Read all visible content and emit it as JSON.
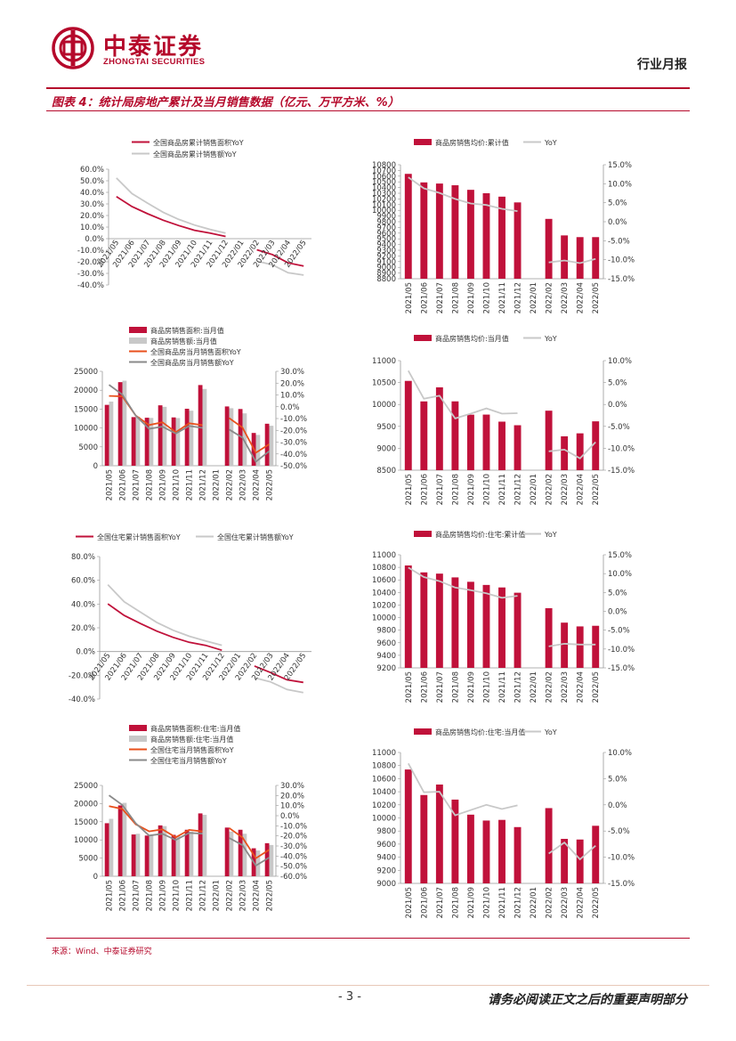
{
  "header": {
    "company_cn": "中泰证券",
    "company_en": "ZHONGTAI SECURITIES",
    "report_type": "行业月报"
  },
  "figure": {
    "title": "图表 4：统计局房地产累计及当月销售数据（亿元、万平方米、%）"
  },
  "footer": {
    "source": "来源：Wind、中泰证券研究",
    "page": "- 3 -",
    "disclaimer": "请务必阅读正文之后的重要声明部分"
  },
  "colors": {
    "red": "#c0113a",
    "grey": "#c8c8c8",
    "orange": "#e8501c",
    "darkgrey": "#8a8a8a"
  },
  "chart_data": [
    {
      "id": "c1",
      "type": "line",
      "categories": [
        "2021/05",
        "2021/06",
        "2021/07",
        "2021/08",
        "2021/09",
        "2021/10",
        "2021/11",
        "2021/12",
        "2022/01",
        "2022/02",
        "2022/03",
        "2022/04",
        "2022/05"
      ],
      "left_axis": {
        "ticks": [
          "60.0%",
          "50.0%",
          "40.0%",
          "30.0%",
          "20.0%",
          "10.0%",
          "0.0%",
          "-10.0%",
          "-20.0%",
          "-30.0%",
          "-40.0%"
        ],
        "min": -40,
        "max": 60
      },
      "series": [
        {
          "name": "全国商品房累计销售面积YoY",
          "kind": "line",
          "axis": "left",
          "color": "#c0113a",
          "values": [
            36.3,
            27.7,
            21.5,
            15.9,
            11.3,
            7.2,
            4.8,
            1.9,
            null,
            -9.6,
            -13.8,
            -20.9,
            -23.6
          ]
        },
        {
          "name": "全国商品房累计销售额YoY",
          "kind": "line",
          "axis": "left",
          "color": "#c8c8c8",
          "values": [
            52.4,
            38.9,
            30.7,
            22.8,
            16.6,
            11.8,
            8.0,
            4.8,
            null,
            -19.3,
            -22.7,
            -29.5,
            -31.5
          ]
        }
      ]
    },
    {
      "id": "c2",
      "type": "bar",
      "categories": [
        "2021/05",
        "2021/06",
        "2021/07",
        "2021/08",
        "2021/09",
        "2021/10",
        "2021/11",
        "2021/12",
        "2022/01",
        "2022/02",
        "2022/03",
        "2022/04",
        "2022/05"
      ],
      "left_axis": {
        "ticks": [
          "10800",
          "10700",
          "10600",
          "10500",
          "10400",
          "10300",
          "10200",
          "10100",
          "10000",
          "9900",
          "9800",
          "9700",
          "9600",
          "9500",
          "9400",
          "9300",
          "9200",
          "9100",
          "9000",
          "8900",
          "8800"
        ],
        "min": 8800,
        "max": 10800
      },
      "right_axis": {
        "ticks": [
          "15.0%",
          "10.0%",
          "5.0%",
          "0.0%",
          "-5.0%",
          "-10.0%",
          "-15.0%"
        ],
        "min": -15,
        "max": 15
      },
      "series": [
        {
          "name": "商品房销售均价:累计值",
          "kind": "bar",
          "axis": "left",
          "color": "#c0113a",
          "values": [
            10640,
            10490,
            10470,
            10440,
            10360,
            10300,
            10240,
            10139,
            null,
            9850,
            9560,
            9530,
            9530
          ]
        },
        {
          "name": "YoY",
          "kind": "line",
          "axis": "right",
          "color": "#c8c8c8",
          "values": [
            11.7,
            8.8,
            7.6,
            6.0,
            4.8,
            4.4,
            3.4,
            2.8,
            null,
            -10.7,
            -10.2,
            -10.9,
            -9.8
          ]
        }
      ]
    },
    {
      "id": "c3",
      "type": "bar",
      "categories": [
        "2021/05",
        "2021/06",
        "2021/07",
        "2021/08",
        "2021/09",
        "2021/10",
        "2021/11",
        "2021/12",
        "2022/01",
        "2022/02",
        "2022/03",
        "2022/04",
        "2022/05"
      ],
      "left_axis": {
        "ticks": [
          "25000",
          "20000",
          "15000",
          "10000",
          "5000",
          "0"
        ],
        "min": 0,
        "max": 25000
      },
      "right_axis": {
        "ticks": [
          "30.0%",
          "20.0%",
          "10.0%",
          "0.0%",
          "-10.0%",
          "-20.0%",
          "-30.0%",
          "-40.0%",
          "-50.0%"
        ],
        "min": -50,
        "max": 30
      },
      "series": [
        {
          "name": "商品房销售面积:当月值",
          "kind": "bar",
          "axis": "left",
          "color": "#c0113a",
          "values": [
            16123,
            22139,
            12879,
            12716,
            16003,
            12797,
            15094,
            21370,
            null,
            15703,
            15021,
            8682,
            11124
          ]
        },
        {
          "name": "商品房销售额:当月值",
          "kind": "bar",
          "axis": "left",
          "color": "#c8c8c8",
          "values": [
            16990,
            22515,
            12975,
            12663,
            15600,
            12634,
            14576,
            20336,
            null,
            15229,
            13873,
            8163,
            10584
          ]
        },
        {
          "name": "全国商品房当月销售面积YoY",
          "kind": "line",
          "axis": "right",
          "color": "#e8501c",
          "values": [
            9.2,
            8.8,
            -7.4,
            -15.5,
            -13.2,
            -21.6,
            -14.0,
            -15.6,
            null,
            -9.6,
            -17.7,
            -39.0,
            -31.8
          ]
        },
        {
          "name": "全国商品房当月销售额YoY",
          "kind": "line",
          "axis": "right",
          "color": "#8a8a8a",
          "values": [
            18.6,
            10.2,
            -7.5,
            -18.7,
            -16.9,
            -22.7,
            -16.3,
            -17.9,
            null,
            -19.3,
            -26.2,
            -46.6,
            -37.7
          ]
        }
      ]
    },
    {
      "id": "c4",
      "type": "bar",
      "categories": [
        "2021/05",
        "2021/06",
        "2021/07",
        "2021/08",
        "2021/09",
        "2021/10",
        "2021/11",
        "2021/12",
        "2022/01",
        "2022/02",
        "2022/03",
        "2022/04",
        "2022/05"
      ],
      "left_axis": {
        "ticks": [
          "11000",
          "10500",
          "10000",
          "9500",
          "9000",
          "8500"
        ],
        "min": 8500,
        "max": 11000
      },
      "right_axis": {
        "ticks": [
          "10.0%",
          "5.0%",
          "0.0%",
          "-5.0%",
          "-10.0%",
          "-15.0%"
        ],
        "min": -15,
        "max": 10
      },
      "series": [
        {
          "name": "商品房销售均价:当月值",
          "kind": "bar",
          "axis": "left",
          "color": "#c0113a",
          "values": [
            10538,
            10070,
            10391,
            10071,
            9767,
            9769,
            9608,
            9526,
            null,
            9858,
            9273,
            9341,
            9615
          ]
        },
        {
          "name": "YoY",
          "kind": "line",
          "axis": "right",
          "color": "#c8c8c8",
          "values": [
            7.7,
            1.3,
            2.0,
            -3.2,
            -2.1,
            -0.9,
            -2.1,
            -2.0,
            null,
            -10.7,
            -10.3,
            -12.3,
            -8.6
          ]
        }
      ]
    },
    {
      "id": "c5",
      "type": "line",
      "categories": [
        "2021/05",
        "2021/06",
        "2021/07",
        "2021/08",
        "2021/09",
        "2021/10",
        "2021/11",
        "2021/12",
        "2022/01",
        "2022/02",
        "2022/03",
        "2022/04",
        "2022/05"
      ],
      "left_axis": {
        "ticks": [
          "80.0%",
          "60.0%",
          "40.0%",
          "20.0%",
          "0.0%",
          "-20.0%",
          "-40.0%"
        ],
        "min": -40,
        "max": 80
      },
      "series": [
        {
          "name": "全国住宅累计销售面积YoY",
          "kind": "line",
          "axis": "left",
          "color": "#c0113a",
          "values": [
            40.2,
            30.4,
            23.6,
            17.2,
            12.0,
            7.8,
            5.2,
            1.1,
            null,
            -12.2,
            -17.7,
            -23.8,
            -26.0
          ]
        },
        {
          "name": "全国住宅累计销售额YoY",
          "kind": "line",
          "axis": "left",
          "color": "#c8c8c8",
          "values": [
            56.3,
            42.0,
            33.2,
            24.6,
            18.0,
            12.9,
            8.9,
            5.3,
            null,
            -22.1,
            -25.6,
            -32.0,
            -34.5
          ]
        }
      ]
    },
    {
      "id": "c6",
      "type": "bar",
      "categories": [
        "2021/05",
        "2021/06",
        "2021/07",
        "2021/08",
        "2021/09",
        "2021/10",
        "2021/11",
        "2021/12",
        "2022/01",
        "2022/02",
        "2022/03",
        "2022/04",
        "2022/05"
      ],
      "left_axis": {
        "ticks": [
          "11000",
          "10800",
          "10600",
          "10400",
          "10200",
          "10000",
          "9800",
          "9600",
          "9400",
          "9200"
        ],
        "min": 9200,
        "max": 11000
      },
      "right_axis": {
        "ticks": [
          "15.0%",
          "10.0%",
          "5.0%",
          "0.0%",
          "-5.0%",
          "-10.0%",
          "-15.0%"
        ],
        "min": -15,
        "max": 15
      },
      "series": [
        {
          "name": "商品房销售均价:住宅:累计值",
          "kind": "bar",
          "axis": "left",
          "color": "#c0113a",
          "values": [
            10830,
            10720,
            10700,
            10640,
            10570,
            10520,
            10480,
            10396,
            null,
            10150,
            9920,
            9860,
            9870
          ]
        },
        {
          "name": "YoY",
          "kind": "line",
          "axis": "right",
          "color": "#c8c8c8",
          "values": [
            11.6,
            9.1,
            8.0,
            6.3,
            5.6,
            4.8,
            3.6,
            4.1,
            null,
            -9.3,
            -8.6,
            -8.8,
            -8.8
          ]
        }
      ]
    },
    {
      "id": "c7",
      "type": "bar",
      "categories": [
        "2021/05",
        "2021/06",
        "2021/07",
        "2021/08",
        "2021/09",
        "2021/10",
        "2021/11",
        "2021/12",
        "2022/01",
        "2022/02",
        "2022/03",
        "2022/04",
        "2022/05"
      ],
      "left_axis": {
        "ticks": [
          "25000",
          "20000",
          "15000",
          "10000",
          "5000",
          "0"
        ],
        "min": 0,
        "max": 25000
      },
      "right_axis": {
        "ticks": [
          "30.0%",
          "20.0%",
          "10.0%",
          "0.0%",
          "-10.0%",
          "-20.0%",
          "-30.0%",
          "-40.0%",
          "-50.0%",
          "-60.0%"
        ],
        "min": -60,
        "max": 30
      },
      "series": [
        {
          "name": "商品房销售面积:住宅:当月值",
          "kind": "bar",
          "axis": "left",
          "color": "#c0113a",
          "values": [
            14600,
            19500,
            11500,
            11200,
            14000,
            11400,
            12800,
            17300,
            null,
            13400,
            12800,
            7700,
            9100
          ]
        },
        {
          "name": "商品房销售额:住宅:当月值",
          "kind": "bar",
          "axis": "left",
          "color": "#c8c8c8",
          "values": [
            15800,
            20200,
            11700,
            11400,
            13800,
            11100,
            12300,
            16900,
            null,
            12300,
            11700,
            7100,
            8600
          ]
        },
        {
          "name": "全国住宅当月销售面积YoY",
          "kind": "line",
          "axis": "right",
          "color": "#e8501c",
          "values": [
            9.5,
            6.6,
            -8.5,
            -15.5,
            -13.5,
            -21.4,
            -14.0,
            -15.6,
            null,
            -12.2,
            -21.6,
            -42.2,
            -33.8
          ]
        },
        {
          "name": "全国住宅当月销售额YoY",
          "kind": "line",
          "axis": "right",
          "color": "#8a8a8a",
          "values": [
            20.2,
            10.6,
            -7.5,
            -19.7,
            -17.9,
            -24.1,
            -17.0,
            -17.8,
            null,
            -22.1,
            -29.2,
            -49.4,
            -41.5
          ]
        }
      ]
    },
    {
      "id": "c8",
      "type": "bar",
      "categories": [
        "2021/05",
        "2021/06",
        "2021/07",
        "2021/08",
        "2021/09",
        "2021/10",
        "2021/11",
        "2021/12",
        "2022/01",
        "2022/02",
        "2022/03",
        "2022/04",
        "2022/05"
      ],
      "left_axis": {
        "ticks": [
          "11000",
          "10800",
          "10600",
          "10400",
          "10200",
          "10000",
          "9800",
          "9600",
          "9400",
          "9200",
          "9000"
        ],
        "min": 9000,
        "max": 11000
      },
      "right_axis": {
        "ticks": [
          "10.0%",
          "5.0%",
          "0.0%",
          "-5.0%",
          "-10.0%",
          "-15.0%"
        ],
        "min": -15,
        "max": 10
      },
      "series": [
        {
          "name": "商品房销售均价:住宅:当月值",
          "kind": "bar",
          "axis": "left",
          "color": "#c0113a",
          "values": [
            10740,
            10350,
            10510,
            10280,
            10050,
            9960,
            9970,
            9860,
            null,
            10150,
            9680,
            9670,
            9880
          ]
        },
        {
          "name": "YoY",
          "kind": "line",
          "axis": "right",
          "color": "#c8c8c8",
          "values": [
            7.9,
            2.4,
            2.5,
            -2.0,
            -1.0,
            0.0,
            -0.8,
            -0.1,
            null,
            -9.3,
            -7.2,
            -10.4,
            -7.8
          ]
        }
      ]
    }
  ]
}
